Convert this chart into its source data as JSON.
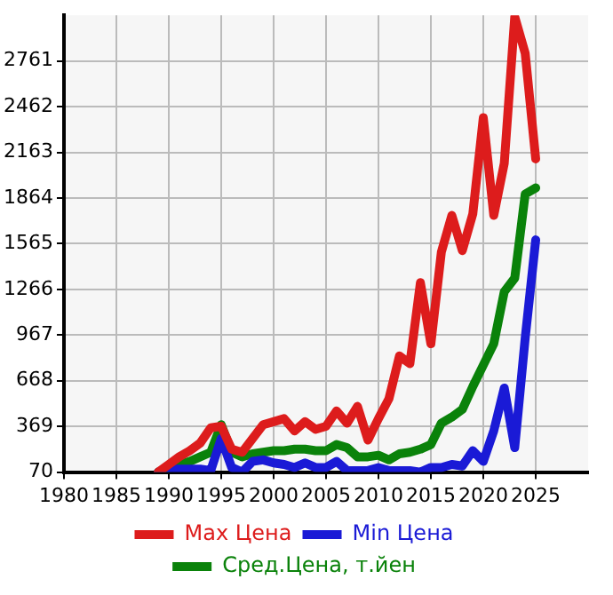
{
  "chart_data": {
    "type": "line",
    "x": [
      1989,
      1990,
      1991,
      1992,
      1993,
      1994,
      1995,
      1996,
      1997,
      1998,
      1999,
      2000,
      2001,
      2002,
      2003,
      2004,
      2005,
      2006,
      2007,
      2008,
      2009,
      2010,
      2011,
      2012,
      2013,
      2014,
      2015,
      2016,
      2017,
      2018,
      2019,
      2020,
      2021,
      2022,
      2023,
      2024,
      2025
    ],
    "series": [
      {
        "name": "Max Цена",
        "color": "#dd1c1c",
        "values": [
          70,
          120,
          170,
          210,
          260,
          360,
          370,
          220,
          200,
          290,
          380,
          400,
          420,
          340,
          400,
          350,
          370,
          470,
          390,
          500,
          280,
          420,
          550,
          830,
          780,
          1310,
          910,
          1510,
          1750,
          1520,
          1760,
          2390,
          1750,
          2090,
          3050,
          2810,
          2120
        ]
      },
      {
        "name": "Min Цена",
        "color": "#1a1ad6",
        "values": [
          70,
          90,
          90,
          90,
          90,
          80,
          290,
          100,
          70,
          140,
          150,
          130,
          120,
          100,
          130,
          100,
          100,
          140,
          80,
          80,
          80,
          100,
          80,
          80,
          80,
          70,
          100,
          100,
          120,
          110,
          210,
          140,
          340,
          620,
          230,
          950,
          1590
        ]
      },
      {
        "name": "Сред.Цена, т.йен",
        "color": "#0a820a",
        "values": [
          70,
          100,
          120,
          140,
          170,
          200,
          380,
          200,
          170,
          190,
          200,
          210,
          210,
          220,
          220,
          210,
          210,
          250,
          230,
          170,
          170,
          180,
          150,
          190,
          200,
          220,
          250,
          390,
          430,
          480,
          630,
          770,
          910,
          1250,
          1340,
          1890,
          1930
        ]
      }
    ],
    "xlim": [
      1980,
      2030
    ],
    "xticks": [
      1980,
      1985,
      1990,
      1995,
      2000,
      2005,
      2010,
      2015,
      2020,
      2025
    ],
    "ylim": [
      70,
      3060
    ],
    "yticks": [
      70,
      369,
      668,
      967,
      1266,
      1565,
      1864,
      2163,
      2462,
      2761
    ],
    "grid": true,
    "legend": "bottom",
    "marker": "none",
    "line_style": "solid"
  }
}
